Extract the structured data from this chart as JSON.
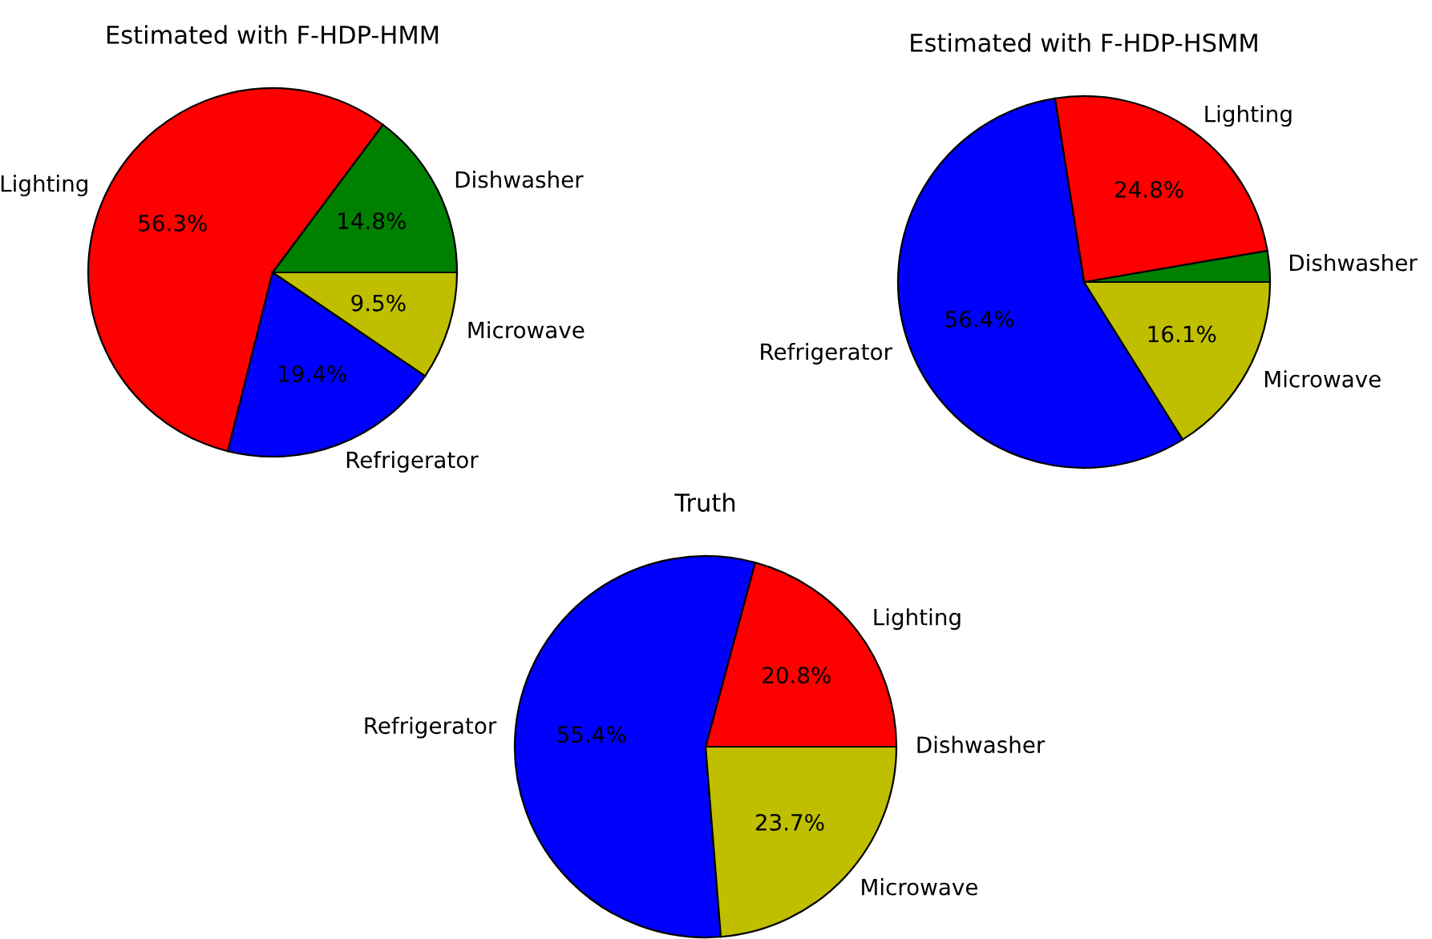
{
  "chart_data": [
    {
      "type": "pie",
      "title": "Estimated with F-HDP-HMM",
      "categories": [
        "Dishwasher",
        "Lighting",
        "Refrigerator",
        "Microwave"
      ],
      "values": [
        14.8,
        56.3,
        19.4,
        9.5
      ],
      "colors": [
        "#008000",
        "#ff0000",
        "#0000ff",
        "#bfbf00"
      ],
      "value_labels": [
        "14.8%",
        "56.3%",
        "19.4%",
        "9.5%"
      ]
    },
    {
      "type": "pie",
      "title": "Estimated with F-HDP-HSMM",
      "categories": [
        "Dishwasher",
        "Lighting",
        "Refrigerator",
        "Microwave"
      ],
      "values": [
        2.7,
        24.8,
        56.4,
        16.1
      ],
      "colors": [
        "#008000",
        "#ff0000",
        "#0000ff",
        "#bfbf00"
      ],
      "value_labels": [
        null,
        "24.8%",
        "56.4%",
        "16.1%"
      ]
    },
    {
      "type": "pie",
      "title": "Truth",
      "categories": [
        "Dishwasher",
        "Lighting",
        "Refrigerator",
        "Microwave"
      ],
      "values": [
        0,
        20.8,
        55.4,
        23.7
      ],
      "colors": [
        "#008000",
        "#ff0000",
        "#0000ff",
        "#bfbf00"
      ],
      "value_labels": [
        null,
        "20.8%",
        "55.4%",
        "23.7%"
      ]
    }
  ]
}
